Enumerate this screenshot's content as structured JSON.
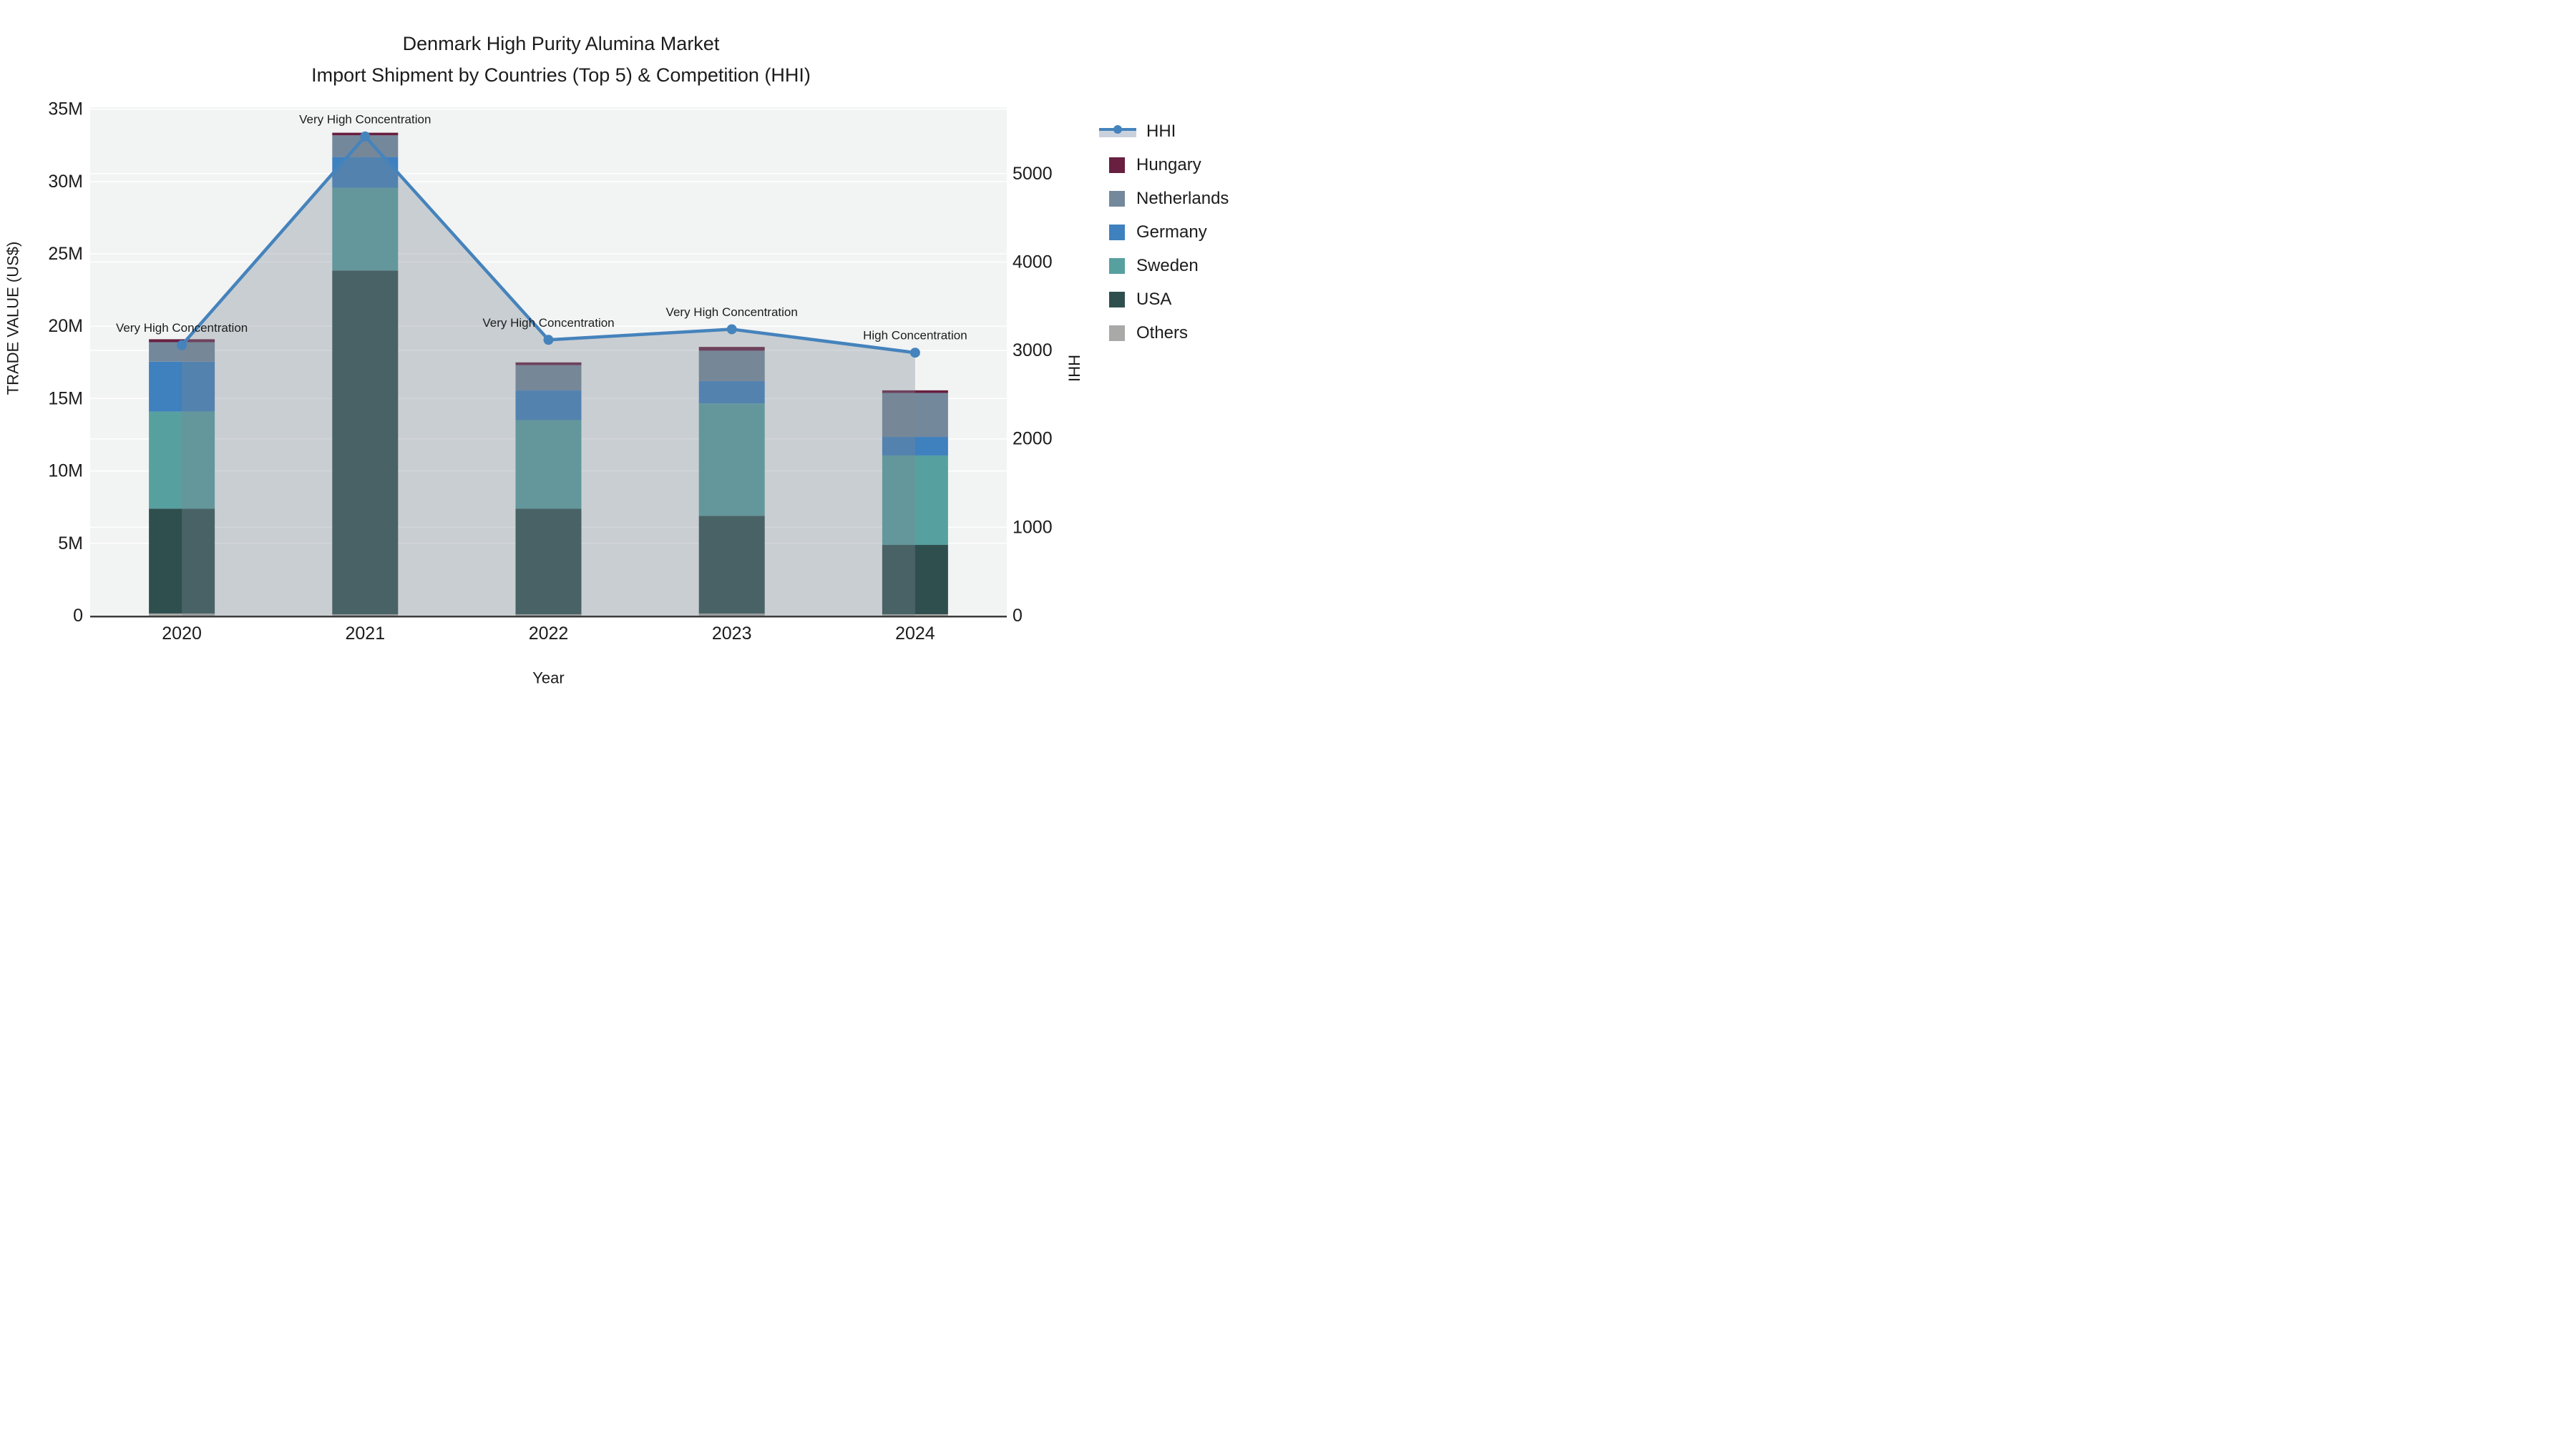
{
  "title": {
    "line1": "Denmark High Purity Alumina Market",
    "line2": "Import Shipment by Countries (Top 5) & Competition (HHI)"
  },
  "chart_data": {
    "type": "combo-stacked-bar-line",
    "categories": [
      "2020",
      "2021",
      "2022",
      "2023",
      "2024"
    ],
    "x_axis_label": "Year",
    "y_left": {
      "label": "TRADE VALUE (US$)",
      "tick_labels": [
        "0",
        "5M",
        "10M",
        "15M",
        "20M",
        "25M",
        "30M",
        "35M"
      ],
      "tick_values": [
        0,
        5,
        10,
        15,
        20,
        25,
        30,
        35
      ],
      "range": [
        0,
        35
      ],
      "units": "millions US$"
    },
    "y_right": {
      "label": "HHI",
      "tick_labels": [
        "0",
        "1000",
        "2000",
        "3000",
        "4000",
        "5000"
      ],
      "tick_values": [
        0,
        1000,
        2000,
        3000,
        4000,
        5000
      ],
      "range": [
        0,
        5730
      ]
    },
    "bar_series_bottom_to_top": [
      {
        "name": "Others",
        "color": "#A9A9A7",
        "values": [
          0.15,
          0.1,
          0.1,
          0.15,
          0.1
        ]
      },
      {
        "name": "USA",
        "color": "#2F4F4F",
        "values": [
          7.25,
          23.75,
          7.3,
          6.75,
          4.79
        ]
      },
      {
        "name": "Sweden",
        "color": "#57A0A0",
        "values": [
          6.7,
          5.72,
          6.11,
          7.76,
          6.18
        ]
      },
      {
        "name": "Germany",
        "color": "#3F80BE",
        "values": [
          3.45,
          2.12,
          2.05,
          1.55,
          1.28
        ]
      },
      {
        "name": "Netherlands",
        "color": "#74889C",
        "values": [
          1.35,
          1.5,
          1.75,
          2.1,
          3.04
        ]
      },
      {
        "name": "Hungary",
        "color": "#681F40",
        "values": [
          0.2,
          0.18,
          0.19,
          0.26,
          0.18
        ]
      }
    ],
    "bar_totals": [
      19.1,
      33.37,
      17.5,
      18.57,
      15.57
    ],
    "line_series": {
      "name": "HHI",
      "color": "#4583BC",
      "marker_color": "#4583BC",
      "area_fill": "rgba(124,134,147,0.34)",
      "values": [
        3060,
        5420,
        3120,
        3240,
        2975
      ]
    },
    "annotations": [
      {
        "category": "2020",
        "text": "Very High Concentration"
      },
      {
        "category": "2021",
        "text": "Very High Concentration"
      },
      {
        "category": "2022",
        "text": "Very High Concentration"
      },
      {
        "category": "2023",
        "text": "Very High Concentration"
      },
      {
        "category": "2024",
        "text": "High Concentration"
      }
    ],
    "legend": [
      {
        "label": "HHI",
        "type": "line",
        "color": "#4583BC",
        "band_color": "#C9D2DC"
      },
      {
        "label": "Hungary",
        "type": "swatch",
        "color": "#681F40"
      },
      {
        "label": "Netherlands",
        "type": "swatch",
        "color": "#74889C"
      },
      {
        "label": "Germany",
        "type": "swatch",
        "color": "#3F80BE"
      },
      {
        "label": "Sweden",
        "type": "swatch",
        "color": "#57A0A0"
      },
      {
        "label": "USA",
        "type": "swatch",
        "color": "#2F4F4F"
      },
      {
        "label": "Others",
        "type": "swatch",
        "color": "#A9A9A7"
      }
    ],
    "legend_position": "right",
    "grid": true,
    "plot_bg": "#F2F3F3",
    "grid_color": "#FFFFFF",
    "axis_line_color": "#3C3C3C",
    "text_color": "#1c1c1c"
  }
}
